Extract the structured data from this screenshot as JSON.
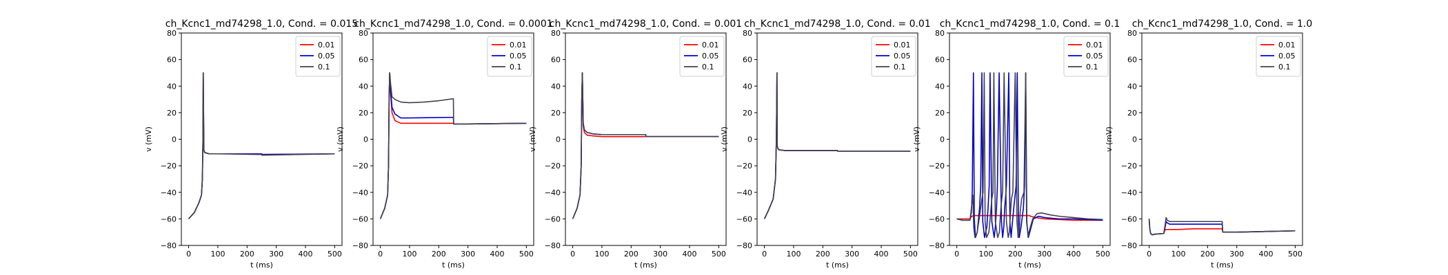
{
  "chart_data": [
    {
      "type": "line",
      "title": "ch_Kcnc1_md74298_1.0, Cond. = 0.015",
      "xlabel": "t (ms)",
      "ylabel": "v (mV)",
      "xlim": [
        -25,
        525
      ],
      "ylim": [
        -80,
        80
      ],
      "xticks": [
        0,
        100,
        200,
        300,
        400,
        500
      ],
      "yticks": [
        -80,
        -60,
        -40,
        -20,
        0,
        20,
        40,
        60,
        80
      ],
      "legend_loc": "upper right",
      "grid": false,
      "series": [
        {
          "name": "0.01",
          "color": "#ff0000",
          "x": [
            0,
            20,
            35,
            44,
            47,
            49,
            50,
            52,
            55,
            70,
            100,
            250,
            251,
            500
          ],
          "y": [
            -60,
            -55,
            -48,
            -42,
            -30,
            0,
            50,
            -8,
            -10,
            -11,
            -11,
            -11,
            -11.5,
            -11
          ]
        },
        {
          "name": "0.05",
          "color": "#0000cc",
          "x": [
            0,
            20,
            35,
            44,
            47,
            49,
            50,
            52,
            55,
            70,
            100,
            250,
            251,
            500
          ],
          "y": [
            -60,
            -55,
            -48,
            -42,
            -30,
            0,
            50,
            -8,
            -10,
            -11,
            -11,
            -11,
            -11.5,
            -11
          ]
        },
        {
          "name": "0.1",
          "color": "#404050",
          "x": [
            0,
            20,
            35,
            44,
            47,
            49,
            50,
            52,
            55,
            70,
            100,
            250,
            251,
            500
          ],
          "y": [
            -60,
            -55,
            -48,
            -42,
            -30,
            0,
            50,
            -8,
            -10,
            -11,
            -11,
            -11.5,
            -12,
            -11
          ]
        }
      ]
    },
    {
      "type": "line",
      "title": "ch_Kcnc1_md74298_1.0, Cond. = 0.0001",
      "xlabel": "t (ms)",
      "ylabel": "v (mV)",
      "xlim": [
        -25,
        525
      ],
      "ylim": [
        -80,
        80
      ],
      "xticks": [
        0,
        100,
        200,
        300,
        400,
        500
      ],
      "yticks": [
        -80,
        -60,
        -40,
        -20,
        0,
        20,
        40,
        60,
        80
      ],
      "legend_loc": "upper right",
      "grid": false,
      "series": [
        {
          "name": "0.01",
          "color": "#ff0000",
          "x": [
            0,
            15,
            25,
            28,
            30,
            32,
            35,
            40,
            50,
            70,
            100,
            250,
            251,
            300,
            500
          ],
          "y": [
            -60,
            -52,
            -42,
            -20,
            30,
            50,
            35,
            20,
            14,
            12,
            12,
            12,
            11.5,
            11.5,
            12
          ]
        },
        {
          "name": "0.05",
          "color": "#0000cc",
          "x": [
            0,
            15,
            25,
            28,
            30,
            32,
            35,
            40,
            50,
            70,
            100,
            250,
            251,
            300,
            500
          ],
          "y": [
            -60,
            -52,
            -42,
            -20,
            30,
            50,
            38,
            24,
            19,
            16,
            16,
            16.5,
            11.5,
            11.5,
            12
          ]
        },
        {
          "name": "0.1",
          "color": "#404050",
          "x": [
            0,
            15,
            25,
            28,
            30,
            32,
            35,
            40,
            50,
            70,
            100,
            150,
            200,
            250,
            251,
            300,
            500
          ],
          "y": [
            -60,
            -52,
            -42,
            -20,
            30,
            50,
            42,
            32,
            30,
            28,
            27.5,
            28,
            29,
            30.5,
            11.5,
            11.5,
            12
          ]
        }
      ]
    },
    {
      "type": "line",
      "title": "ch_Kcnc1_md74298_1.0, Cond. = 0.001",
      "xlabel": "t (ms)",
      "ylabel": "v (mV)",
      "xlim": [
        -25,
        525
      ],
      "ylim": [
        -80,
        80
      ],
      "xticks": [
        0,
        100,
        200,
        300,
        400,
        500
      ],
      "yticks": [
        -80,
        -60,
        -40,
        -20,
        0,
        20,
        40,
        60,
        80
      ],
      "legend_loc": "upper right",
      "grid": false,
      "series": [
        {
          "name": "0.01",
          "color": "#ff0000",
          "x": [
            0,
            15,
            25,
            29,
            31,
            33,
            36,
            40,
            50,
            70,
            100,
            250,
            251,
            500
          ],
          "y": [
            -60,
            -52,
            -42,
            -20,
            30,
            50,
            10,
            5,
            3,
            2.5,
            2,
            2,
            2,
            2
          ]
        },
        {
          "name": "0.05",
          "color": "#0000cc",
          "x": [
            0,
            15,
            25,
            29,
            31,
            33,
            36,
            40,
            50,
            70,
            100,
            250,
            251,
            500
          ],
          "y": [
            -60,
            -52,
            -42,
            -20,
            30,
            50,
            12,
            7,
            5,
            4,
            3.5,
            3.5,
            2,
            2
          ]
        },
        {
          "name": "0.1",
          "color": "#404050",
          "x": [
            0,
            15,
            25,
            29,
            31,
            33,
            36,
            40,
            50,
            70,
            100,
            250,
            251,
            500
          ],
          "y": [
            -60,
            -52,
            -42,
            -20,
            30,
            50,
            12,
            7,
            5,
            4,
            3.5,
            3.5,
            2,
            2
          ]
        }
      ]
    },
    {
      "type": "line",
      "title": "ch_Kcnc1_md74298_1.0, Cond. = 0.01",
      "xlabel": "t (ms)",
      "ylabel": "v (mV)",
      "xlim": [
        -25,
        525
      ],
      "ylim": [
        -80,
        80
      ],
      "xticks": [
        0,
        100,
        200,
        300,
        400,
        500
      ],
      "yticks": [
        -80,
        -60,
        -40,
        -20,
        0,
        20,
        40,
        60,
        80
      ],
      "legend_loc": "upper right",
      "grid": false,
      "series": [
        {
          "name": "0.01",
          "color": "#ff0000",
          "x": [
            0,
            15,
            30,
            38,
            41,
            43,
            44,
            46,
            50,
            70,
            100,
            250,
            251,
            500
          ],
          "y": [
            -60,
            -53,
            -45,
            -30,
            0,
            50,
            -5,
            -7,
            -8,
            -8.5,
            -8.5,
            -8.5,
            -9,
            -9
          ]
        },
        {
          "name": "0.05",
          "color": "#0000cc",
          "x": [
            0,
            15,
            30,
            38,
            41,
            43,
            44,
            46,
            50,
            70,
            100,
            250,
            251,
            500
          ],
          "y": [
            -60,
            -53,
            -45,
            -30,
            0,
            50,
            -5,
            -7,
            -8,
            -8.5,
            -8.5,
            -8.5,
            -9,
            -9
          ]
        },
        {
          "name": "0.1",
          "color": "#404050",
          "x": [
            0,
            15,
            30,
            38,
            41,
            43,
            44,
            46,
            50,
            70,
            100,
            250,
            251,
            500
          ],
          "y": [
            -60,
            -53,
            -45,
            -30,
            0,
            50,
            -5,
            -7,
            -8,
            -8.5,
            -8.5,
            -8.5,
            -9,
            -9
          ]
        }
      ]
    },
    {
      "type": "line",
      "title": "ch_Kcnc1_md74298_1.0, Cond. = 0.1",
      "xlabel": "t (ms)",
      "ylabel": "v (mV)",
      "xlim": [
        -25,
        525
      ],
      "ylim": [
        -80,
        80
      ],
      "xticks": [
        0,
        100,
        200,
        300,
        400,
        500
      ],
      "yticks": [
        -80,
        -60,
        -40,
        -20,
        0,
        20,
        40,
        60,
        80
      ],
      "legend_loc": "upper right",
      "grid": false,
      "spike_series": [
        "0.05",
        "0.1"
      ],
      "series": [
        {
          "name": "0.01",
          "color": "#ff0000",
          "x": [
            0,
            20,
            45,
            48,
            52,
            60,
            100,
            150,
            200,
            250,
            252,
            270,
            300,
            350,
            400,
            450,
            500
          ],
          "y": [
            -60,
            -60,
            -60,
            -59,
            -58,
            -57.5,
            -57.5,
            -57.5,
            -57.5,
            -57.5,
            -58,
            -59,
            -60,
            -60.5,
            -61,
            -61,
            -61
          ]
        },
        {
          "name": "0.05",
          "color": "#0000cc",
          "x": [
            0,
            20,
            45,
            50,
            53,
            57,
            60,
            64,
            70,
            78,
            82,
            86,
            89,
            95,
            103,
            107,
            111,
            114,
            120,
            128,
            132,
            136,
            139,
            145,
            153,
            157,
            161,
            164,
            170,
            178,
            182,
            186,
            189,
            195,
            203,
            207,
            211,
            214,
            220,
            228,
            232,
            236,
            239,
            245,
            250,
            262,
            280,
            300,
            350,
            400,
            450,
            500
          ],
          "y": [
            -60,
            -61,
            -61,
            -55,
            -40,
            50,
            -60,
            -74,
            -70,
            -52,
            -35,
            50,
            -62,
            -74,
            -66,
            -52,
            -35,
            50,
            -62,
            -74,
            -66,
            -52,
            -35,
            50,
            -62,
            -74,
            -66,
            -52,
            -35,
            50,
            -62,
            -74,
            -66,
            -52,
            -35,
            50,
            -62,
            -74,
            -66,
            -52,
            -35,
            50,
            -62,
            -74,
            -70,
            -60,
            -58,
            -59,
            -60,
            -60,
            -60.5,
            -61
          ]
        },
        {
          "name": "0.1",
          "color": "#404050",
          "x": [
            0,
            20,
            45,
            48,
            51,
            55,
            58,
            62,
            70,
            80,
            86,
            90,
            94,
            97,
            102,
            110,
            116,
            120,
            124,
            127,
            132,
            140,
            146,
            150,
            154,
            157,
            162,
            170,
            176,
            180,
            184,
            187,
            192,
            200,
            206,
            210,
            214,
            217,
            222,
            230,
            236,
            240,
            244,
            247,
            252,
            260,
            275,
            290,
            320,
            350,
            400,
            450,
            500
          ],
          "y": [
            -60,
            -61,
            -61,
            -56,
            -50,
            -42,
            -66,
            -74,
            -70,
            -55,
            -45,
            -40,
            50,
            -62,
            -74,
            -70,
            -55,
            -45,
            -40,
            50,
            -62,
            -74,
            -70,
            -55,
            -45,
            -40,
            50,
            -62,
            -74,
            -70,
            -55,
            -45,
            -40,
            50,
            -62,
            -74,
            -70,
            -55,
            -45,
            -40,
            50,
            -62,
            -74,
            -70,
            -66,
            -60,
            -56,
            -55.5,
            -57,
            -58,
            -59,
            -60,
            -60.5
          ]
        }
      ]
    },
    {
      "type": "line",
      "title": "ch_Kcnc1_md74298_1.0, Cond. = 1.0",
      "xlabel": "t (ms)",
      "ylabel": "v (mV)",
      "xlim": [
        -25,
        525
      ],
      "ylim": [
        -80,
        80
      ],
      "xticks": [
        0,
        100,
        200,
        300,
        400,
        500
      ],
      "yticks": [
        -80,
        -60,
        -40,
        -20,
        0,
        20,
        40,
        60,
        80
      ],
      "legend_loc": "upper right",
      "grid": false,
      "series": [
        {
          "name": "0.01",
          "color": "#ff0000",
          "x": [
            0,
            2,
            5,
            10,
            20,
            50,
            55,
            60,
            100,
            150,
            200,
            250,
            252,
            300,
            400,
            500
          ],
          "y": [
            -60,
            -67,
            -71,
            -72,
            -71.5,
            -71,
            -68,
            -68,
            -68,
            -67.5,
            -67.5,
            -67.5,
            -70,
            -70,
            -69.5,
            -69
          ]
        },
        {
          "name": "0.05",
          "color": "#0000cc",
          "x": [
            0,
            2,
            5,
            10,
            20,
            50,
            55,
            58,
            62,
            70,
            100,
            150,
            200,
            250,
            252,
            300,
            400,
            500
          ],
          "y": [
            -60,
            -67,
            -71,
            -72,
            -71.5,
            -71,
            -66,
            -62,
            -63,
            -64,
            -64,
            -64,
            -64,
            -64,
            -70,
            -70,
            -69.5,
            -69
          ]
        },
        {
          "name": "0.1",
          "color": "#404050",
          "x": [
            0,
            2,
            5,
            10,
            20,
            50,
            55,
            58,
            62,
            70,
            100,
            150,
            200,
            250,
            252,
            300,
            400,
            500
          ],
          "y": [
            -60,
            -67,
            -71,
            -72,
            -71.5,
            -71,
            -64,
            -59,
            -61,
            -62,
            -62,
            -62,
            -62,
            -62,
            -70,
            -70,
            -69.5,
            -69
          ]
        }
      ]
    }
  ]
}
